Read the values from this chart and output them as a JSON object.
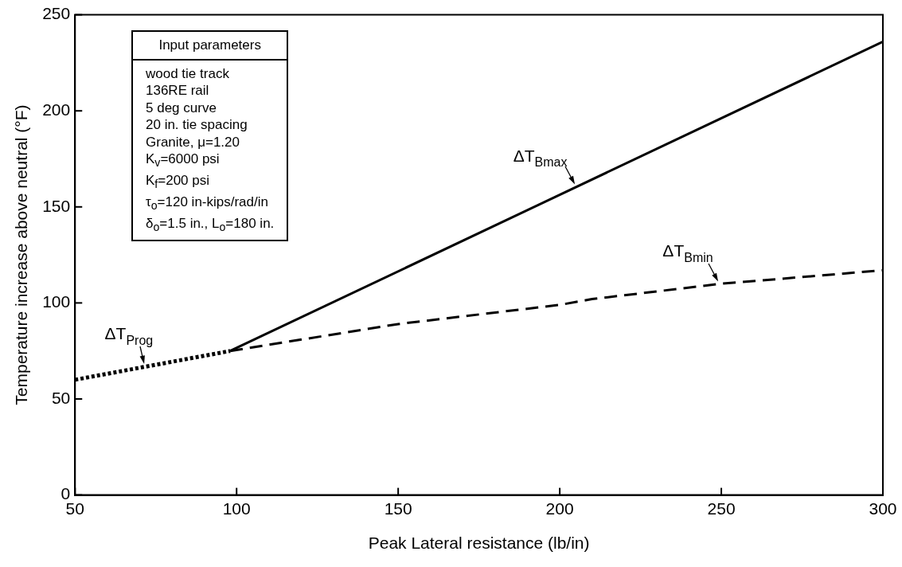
{
  "chart_data": {
    "type": "line",
    "xlabel": "Peak Lateral resistance (lb/in)",
    "ylabel": "Temperature increase above neutral (°F)",
    "xlim": [
      50,
      300
    ],
    "xticks": [
      50,
      100,
      150,
      200,
      250,
      300
    ],
    "ylim": [
      0,
      250
    ],
    "yticks": [
      0,
      50,
      100,
      150,
      200,
      250
    ],
    "grid": false,
    "legend": false,
    "marker": "none",
    "annotations": [
      "Input parameters",
      "wood tie track",
      "136RE rail",
      "5 deg curve",
      "20 in. tie spacing",
      "Granite, μ=1.20",
      "K$_{v}$=6000 psi",
      "K$_{f}$=200 psi",
      "τ$_{o}$=120 in-kips/rad/in",
      "δ$_{o}$=1.5 in., L$_{o}$=180 in."
    ],
    "series": [
      {
        "name": "ΔT$_{Bmax}$",
        "color": "#000000",
        "line_style": "solid",
        "x": [
          98,
          300
        ],
        "values": [
          75,
          236
        ]
      },
      {
        "name": "ΔT$_{Bmin}$",
        "color": "#000000",
        "line_style": "dashed",
        "x": [
          98,
          150,
          200,
          210,
          250,
          300
        ],
        "values": [
          75,
          89,
          99,
          102,
          110,
          117
        ]
      },
      {
        "name": "ΔT$_{Prog}$",
        "color": "#000000",
        "line_style": "dotted",
        "x": [
          50,
          98
        ],
        "values": [
          60,
          75
        ]
      }
    ]
  }
}
